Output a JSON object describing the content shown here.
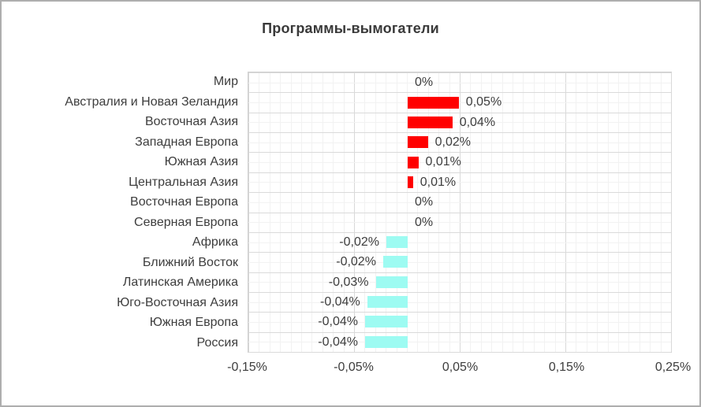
{
  "title": "Программы-вымогатели",
  "colors": {
    "positive_bar": "#ff0000",
    "negative_bar": "#9dfbf2",
    "text": "#3d3d3d",
    "grid_major": "#d9d9d9",
    "grid_minor": "#f2f2f2"
  },
  "chart_data": {
    "type": "bar",
    "orientation": "horizontal",
    "title": "Программы-вымогатели",
    "categories": [
      "Мир",
      "Австралия и Новая Зеландия",
      "Восточная Азия",
      "Западная Европа",
      "Южная Азия",
      "Центральная Азия",
      "Восточная Европа",
      "Северная Европа",
      "Африка",
      "Ближний Восток",
      "Латинская Америка",
      "Юго-Восточная Азия",
      "Южная Европа",
      "Россия"
    ],
    "values": [
      0,
      0.05,
      0.04,
      0.02,
      0.01,
      0.01,
      0,
      0,
      -0.02,
      -0.02,
      -0.03,
      -0.04,
      -0.04,
      -0.04
    ],
    "values_raw": [
      0,
      0.048,
      0.042,
      0.019,
      0.01,
      0.005,
      0,
      0,
      -0.02,
      -0.023,
      -0.03,
      -0.038,
      -0.04,
      -0.04
    ],
    "labels": [
      "0%",
      "0,05%",
      "0,04%",
      "0,02%",
      "0,01%",
      "0,01%",
      "0%",
      "0%",
      "-0,02%",
      "-0,02%",
      "-0,03%",
      "-0,04%",
      "-0,04%",
      "-0,04%"
    ],
    "x_ticks": [
      "-0,15%",
      "-0,05%",
      "0,05%",
      "0,15%",
      "0,25%"
    ],
    "x_tick_values": [
      -0.15,
      -0.05,
      0.05,
      0.15,
      0.25
    ],
    "xlim": [
      -0.15,
      0.25
    ],
    "units": "%",
    "grid": "major+minor",
    "legend": "none"
  }
}
